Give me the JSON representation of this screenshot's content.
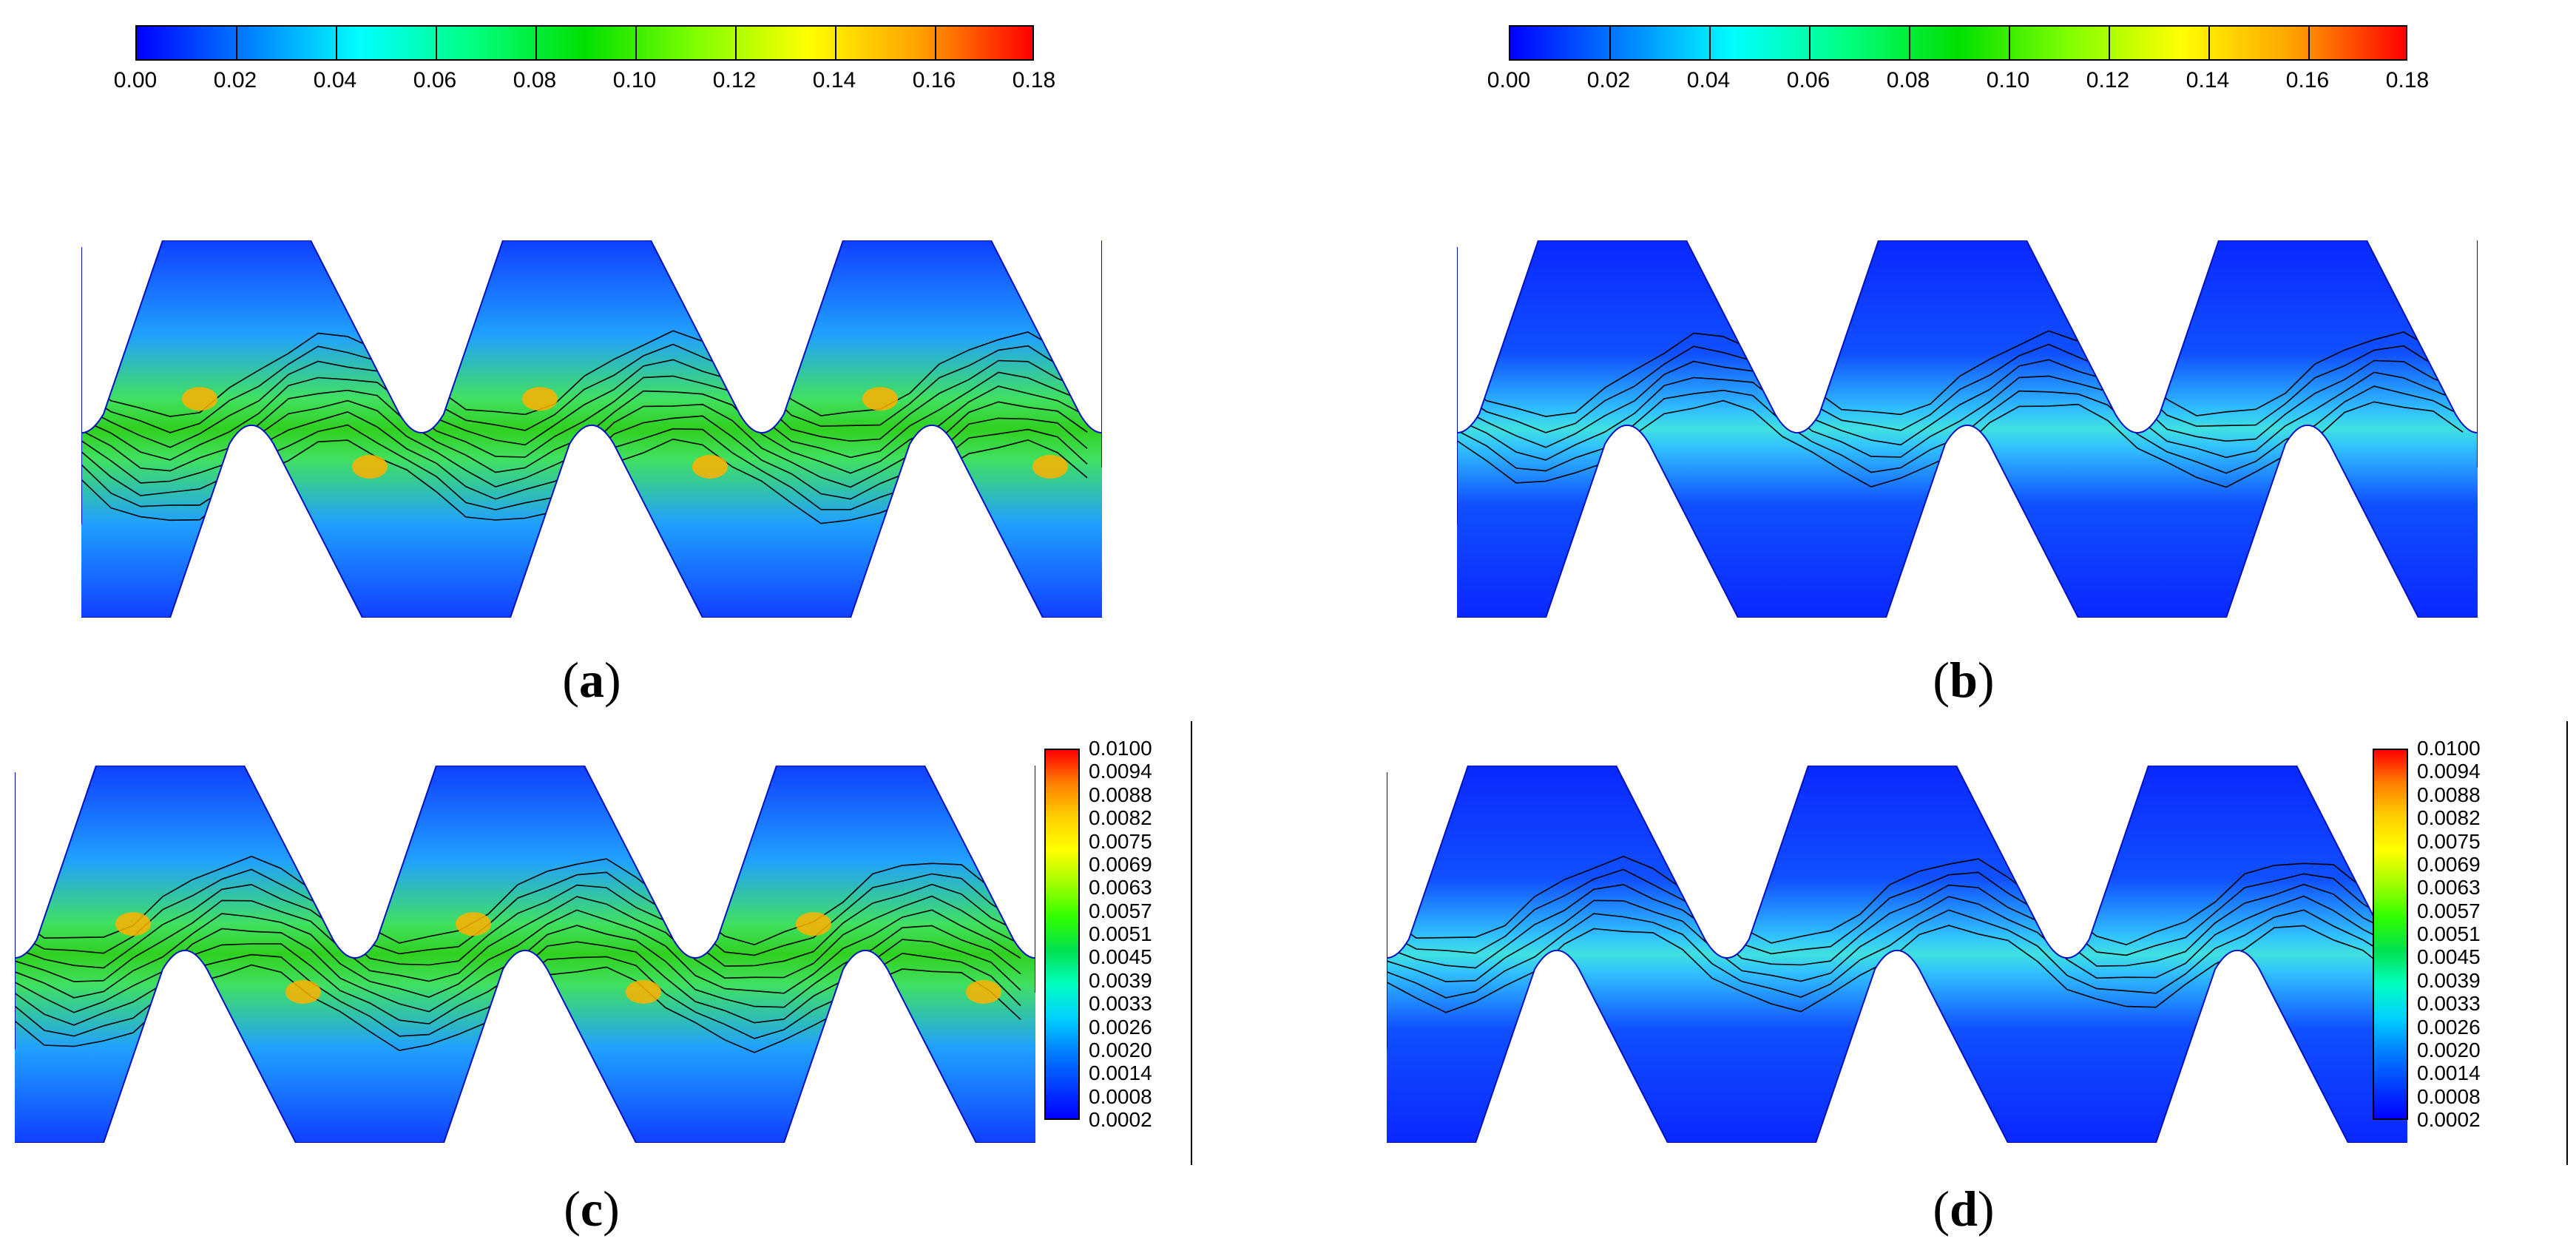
{
  "colorbar_top": {
    "ticks": [
      "0.00",
      "0.02",
      "0.04",
      "0.06",
      "0.08",
      "0.10",
      "0.12",
      "0.14",
      "0.16",
      "0.18"
    ],
    "colors": [
      "#0000ff",
      "#0080ff",
      "#00ffff",
      "#00ff80",
      "#00e000",
      "#80ff00",
      "#ffff00",
      "#ffa000",
      "#ff0000"
    ]
  },
  "colorbar_side": {
    "ticks": [
      "0.0100",
      "0.0094",
      "0.0088",
      "0.0082",
      "0.0075",
      "0.0069",
      "0.0063",
      "0.0057",
      "0.0051",
      "0.0045",
      "0.0039",
      "0.0033",
      "0.0026",
      "0.0020",
      "0.0014",
      "0.0008",
      "0.0002"
    ]
  },
  "panels": [
    {
      "paren_open": "(",
      "letter": "a",
      "paren_close": ")"
    },
    {
      "paren_open": "(",
      "letter": "b",
      "paren_close": ")"
    },
    {
      "paren_open": "(",
      "letter": "c",
      "paren_close": ")"
    },
    {
      "paren_open": "(",
      "letter": "d",
      "paren_close": ")"
    }
  ]
}
